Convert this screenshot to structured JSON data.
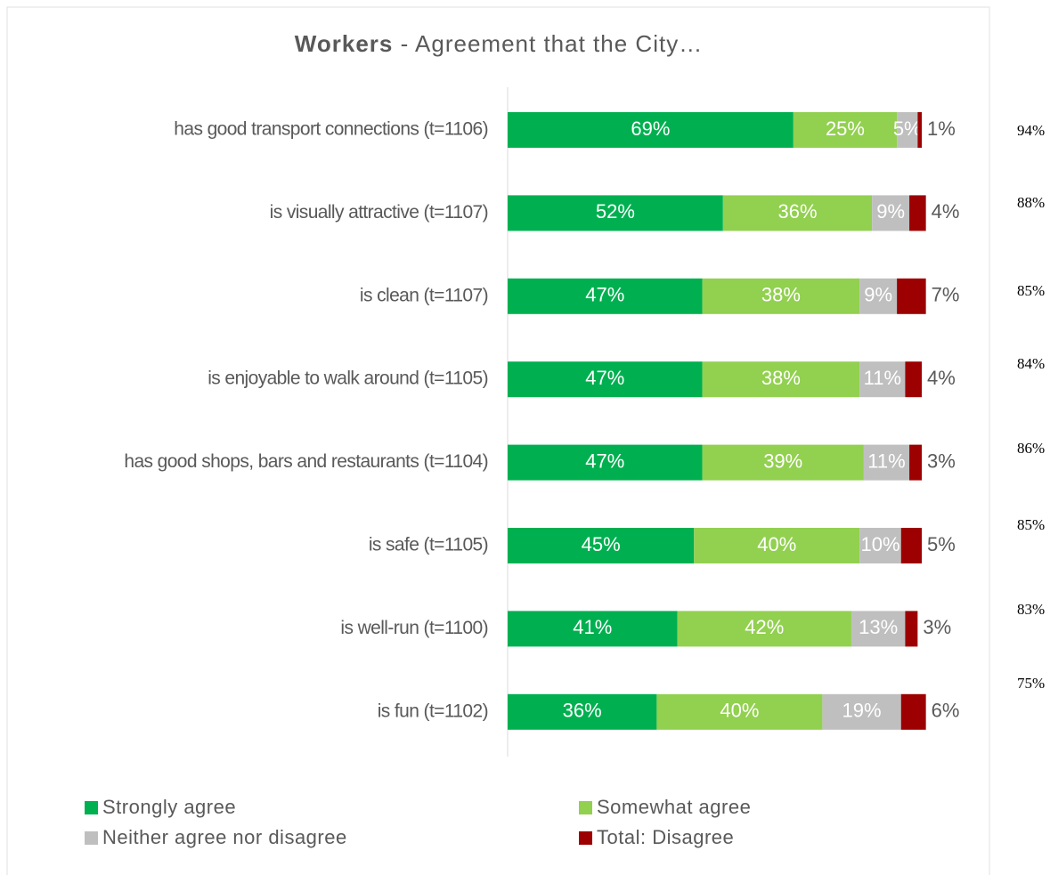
{
  "chart_data": {
    "type": "stacked-bar-horizontal",
    "title": {
      "bold": "Workers",
      "rest": "- Agreement that the City…"
    },
    "categories": [
      "has good transport connections (t=1106)",
      "is visually attractive (t=1107)",
      "is clean (t=1107)",
      "is enjoyable to walk around (t=1105)",
      "has good shops, bars and restaurants (t=1104)",
      "is safe (t=1105)",
      "is well-run (t=1100)",
      "is fun (t=1102)"
    ],
    "series": [
      {
        "name": "Strongly agree",
        "color": "#00b050",
        "label_color": "#ffffff",
        "values": [
          69,
          52,
          47,
          47,
          47,
          45,
          41,
          36
        ],
        "value_labels": [
          "69%",
          "52%",
          "47%",
          "47%",
          "47%",
          "45%",
          "41%",
          "36%"
        ]
      },
      {
        "name": "Somewhat agree",
        "color": "#92d050",
        "label_color": "#ffffff",
        "values": [
          25,
          36,
          38,
          38,
          39,
          40,
          42,
          40
        ],
        "value_labels": [
          "25%",
          "36%",
          "38%",
          "38%",
          "39%",
          "40%",
          "42%",
          "40%"
        ]
      },
      {
        "name": "Neither agree nor disagree",
        "color": "#bfbfbf",
        "label_color": "#ffffff",
        "values": [
          5,
          9,
          9,
          11,
          11,
          10,
          13,
          19
        ],
        "value_labels": [
          "5%",
          "9%",
          "9%",
          "11%",
          "11%",
          "10%",
          "13%",
          "19%"
        ]
      },
      {
        "name": "Total: Disagree",
        "color": "#9c0000",
        "label_color": "#595959",
        "values": [
          1,
          4,
          7,
          4,
          3,
          5,
          3,
          6
        ],
        "value_labels": [
          "1%",
          "4%",
          "7%",
          "4%",
          "3%",
          "5%",
          "3%",
          "6%"
        ]
      }
    ],
    "totals": {
      "values": [
        94,
        88,
        85,
        84,
        86,
        85,
        83,
        75
      ],
      "value_labels": [
        "94%",
        "88%",
        "85%",
        "84%",
        "86%",
        "85%",
        "83%",
        "75%"
      ]
    }
  }
}
